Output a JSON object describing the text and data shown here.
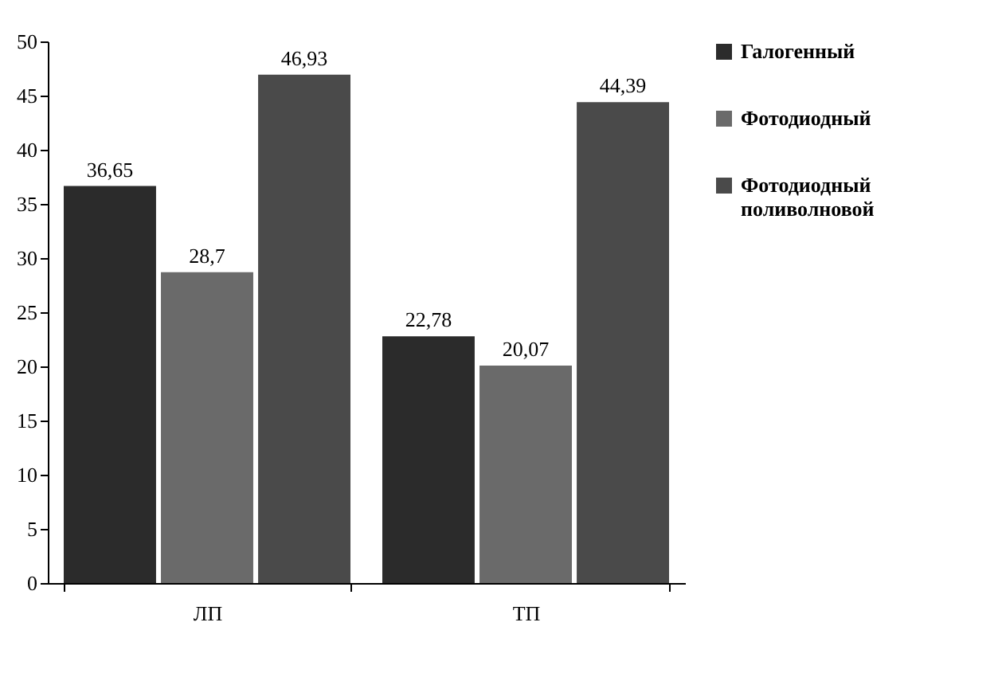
{
  "chart_data": {
    "type": "bar",
    "categories": [
      "ЛП",
      "ТП"
    ],
    "series": [
      {
        "name": "Галогенный",
        "color": "#2b2b2b",
        "values": [
          36.65,
          22.78
        ],
        "value_labels": [
          "36,65",
          "22,78"
        ]
      },
      {
        "name": "Фотодиодный",
        "color": "#6a6a6a",
        "values": [
          28.7,
          20.07
        ],
        "value_labels": [
          "28,7",
          "20,07"
        ]
      },
      {
        "name": "Фотодиодный поливолновой",
        "color": "#4a4a4a",
        "values": [
          46.93,
          44.39
        ],
        "value_labels": [
          "46,93",
          "44,39"
        ]
      }
    ],
    "ylim": [
      0,
      50
    ],
    "yticks": [
      0,
      5,
      10,
      15,
      20,
      25,
      30,
      35,
      40,
      45,
      50
    ],
    "grid": false,
    "legend": "right"
  }
}
